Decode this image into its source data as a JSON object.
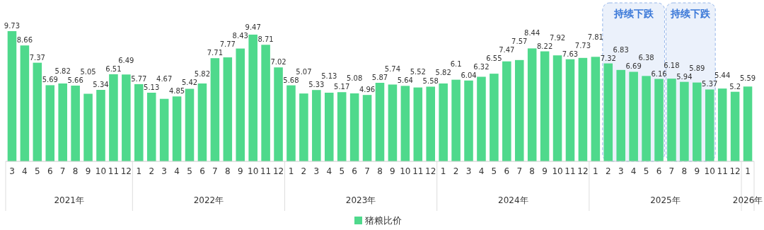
{
  "chart_data": {
    "type": "bar",
    "x": [
      "2021-03",
      "2021-04",
      "2021-05",
      "2021-06",
      "2021-07",
      "2021-08",
      "2021-09",
      "2021-10",
      "2021-11",
      "2021-12",
      "2022-01",
      "2022-02",
      "2022-03",
      "2022-04",
      "2022-05",
      "2022-06",
      "2022-07",
      "2022-08",
      "2022-09",
      "2022-10",
      "2022-11",
      "2022-12",
      "2023-01",
      "2023-02",
      "2023-03",
      "2023-04",
      "2023-05",
      "2023-06",
      "2023-07",
      "2023-08",
      "2023-09",
      "2023-10",
      "2023-11",
      "2023-12",
      "2024-01",
      "2024-02",
      "2024-03",
      "2024-04",
      "2024-05",
      "2024-06",
      "2024-07",
      "2024-08",
      "2024-09",
      "2024-10",
      "2024-11",
      "2024-12",
      "2025-01",
      "2025-02",
      "2025-03",
      "2025-04",
      "2025-05",
      "2025-06",
      "2025-07",
      "2025-08",
      "2025-09",
      "2025-10",
      "2025-11",
      "2025-12",
      "2026-01"
    ],
    "xticks": [
      {
        "value": "2021-03",
        "label": "3"
      },
      {
        "value": "2021-04",
        "label": "4"
      },
      {
        "value": "2021-05",
        "label": "5"
      },
      {
        "value": "2021-06",
        "label": "6"
      },
      {
        "value": "2021-07",
        "label": "7"
      },
      {
        "value": "2021-08",
        "label": "8"
      },
      {
        "value": "2021-09",
        "label": "9"
      },
      {
        "value": "2021-10",
        "label": "10"
      },
      {
        "value": "2021-11",
        "label": "11"
      },
      {
        "value": "2021-12",
        "label": "12"
      },
      {
        "value": "2022-01",
        "label": "1"
      },
      {
        "value": "2022-02",
        "label": "2"
      },
      {
        "value": "2022-03",
        "label": "3"
      },
      {
        "value": "2022-04",
        "label": "4"
      },
      {
        "value": "2022-05",
        "label": "5"
      },
      {
        "value": "2022-06",
        "label": "6"
      },
      {
        "value": "2022-07",
        "label": "7"
      },
      {
        "value": "2022-08",
        "label": "8"
      },
      {
        "value": "2022-09",
        "label": "9"
      },
      {
        "value": "2022-10",
        "label": "10"
      },
      {
        "value": "2022-11",
        "label": "11"
      },
      {
        "value": "2022-12",
        "label": "12"
      },
      {
        "value": "2023-01",
        "label": "1"
      },
      {
        "value": "2023-02",
        "label": "2"
      },
      {
        "value": "2023-03",
        "label": "3"
      },
      {
        "value": "2023-04",
        "label": "4"
      },
      {
        "value": "2023-05",
        "label": "5"
      },
      {
        "value": "2023-06",
        "label": "6"
      },
      {
        "value": "2023-07",
        "label": "7"
      },
      {
        "value": "2023-08",
        "label": "8"
      },
      {
        "value": "2023-09",
        "label": "9"
      },
      {
        "value": "2023-10",
        "label": "10"
      },
      {
        "value": "2023-11",
        "label": "11"
      },
      {
        "value": "2023-12",
        "label": "12"
      },
      {
        "value": "2024-01",
        "label": "1"
      },
      {
        "value": "2024-02",
        "label": "2"
      },
      {
        "value": "2024-03",
        "label": "3"
      },
      {
        "value": "2024-04",
        "label": "4"
      },
      {
        "value": "2024-05",
        "label": "5"
      },
      {
        "value": "2024-06",
        "label": "6"
      },
      {
        "value": "2024-07",
        "label": "7"
      },
      {
        "value": "2024-08",
        "label": "8"
      },
      {
        "value": "2024-09",
        "label": "9"
      },
      {
        "value": "2024-10",
        "label": "10"
      },
      {
        "value": "2024-11",
        "label": "11"
      },
      {
        "value": "2024-12",
        "label": "12"
      },
      {
        "value": "2025-01",
        "label": "1"
      },
      {
        "value": "2025-02",
        "label": "2"
      },
      {
        "value": "2025-03",
        "label": "3"
      },
      {
        "value": "2025-04",
        "label": "4"
      },
      {
        "value": "2025-05",
        "label": "5"
      },
      {
        "value": "2025-06",
        "label": "6"
      },
      {
        "value": "2025-07",
        "label": "7"
      },
      {
        "value": "2025-08",
        "label": "8"
      },
      {
        "value": "2025-09",
        "label": "9"
      },
      {
        "value": "2025-10",
        "label": "10"
      },
      {
        "value": "2025-11",
        "label": "11"
      },
      {
        "value": "2025-12",
        "label": "12"
      },
      {
        "value": "2026-01",
        "label": "1"
      }
    ],
    "series": [
      {
        "name": "猪粮比价",
        "color": "#4fd98c",
        "values": [
          9.73,
          8.66,
          7.37,
          5.69,
          5.82,
          5.66,
          5.05,
          5.34,
          6.51,
          6.49,
          5.77,
          5.13,
          4.67,
          4.85,
          5.42,
          5.82,
          7.71,
          7.77,
          8.43,
          9.47,
          8.71,
          7.02,
          5.68,
          5.07,
          5.33,
          5.13,
          5.17,
          5.08,
          4.96,
          5.87,
          5.74,
          5.64,
          5.52,
          5.58,
          5.82,
          6.1,
          6.04,
          6.32,
          6.55,
          7.47,
          7.57,
          8.44,
          8.22,
          7.92,
          7.63,
          7.73,
          7.81,
          7.32,
          6.83,
          6.69,
          6.38,
          6.16,
          6.18,
          5.94,
          5.89,
          5.37,
          5.44,
          5.2,
          5.59
        ]
      }
    ],
    "data_labels": true,
    "bands": [
      {
        "axis": "x",
        "from": "2025-01-16",
        "to": "2025-06-16",
        "label": "持续下跌",
        "color": "#3a78d8"
      },
      {
        "axis": "x",
        "from": "2025-06-16",
        "to": "2025-10-16",
        "label": "持续下跌",
        "color": "#3a78d8"
      }
    ],
    "xlim": [
      "2021-03",
      "2026-01"
    ],
    "annotations": [
      "2021年",
      "2022年",
      "2023年",
      "2024年",
      "2025年",
      "2026年"
    ],
    "legend": "bottom",
    "grid": false
  }
}
